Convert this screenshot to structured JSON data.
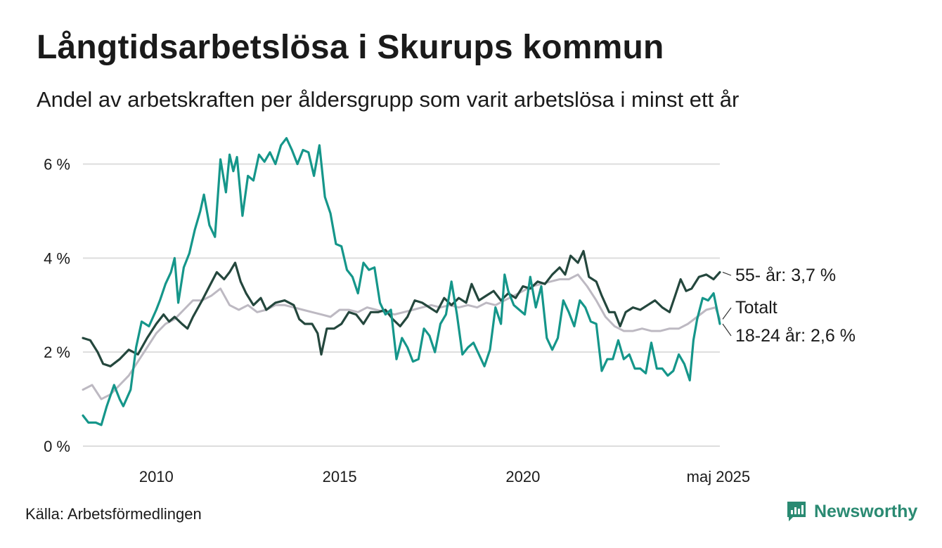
{
  "title": "Långtidsarbetslösa i Skurups kommun",
  "subtitle": "Andel av arbetskraften per åldersgrupp som varit arbetslösa i minst ett år",
  "source": "Källa: Arbetsförmedlingen",
  "brand": "Newsworthy",
  "colors": {
    "series_55": "#24473d",
    "series_total": "#bdb9c2",
    "series_18_24": "#15968a",
    "grid": "#dddddd",
    "brand": "#2a8a72"
  },
  "chart_data": {
    "type": "line",
    "ylim": [
      0,
      6.8
    ],
    "xlim": [
      2008.0,
      2025.37
    ],
    "yticks": [
      0,
      2,
      4,
      6
    ],
    "ytick_labels": [
      "0 %",
      "2 %",
      "4 %",
      "6 %"
    ],
    "xticks": [
      2010,
      2015,
      2020,
      2025.33
    ],
    "xtick_labels": [
      "2010",
      "2015",
      "2020",
      "maj 2025"
    ],
    "grid": true,
    "end_labels": {
      "series_55": "55- år: 3,7 %",
      "series_total": "Totalt",
      "series_18_24": "18-24 år: 2,6 %"
    },
    "series": [
      {
        "key": "series_total",
        "points": [
          [
            2008.0,
            1.2
          ],
          [
            2008.25,
            1.3
          ],
          [
            2008.5,
            1.0
          ],
          [
            2008.75,
            1.1
          ],
          [
            2009.0,
            1.3
          ],
          [
            2009.25,
            1.5
          ],
          [
            2009.5,
            1.8
          ],
          [
            2009.75,
            2.1
          ],
          [
            2010.0,
            2.4
          ],
          [
            2010.25,
            2.6
          ],
          [
            2010.5,
            2.7
          ],
          [
            2010.75,
            2.9
          ],
          [
            2011.0,
            3.1
          ],
          [
            2011.25,
            3.1
          ],
          [
            2011.5,
            3.2
          ],
          [
            2011.75,
            3.35
          ],
          [
            2012.0,
            3.0
          ],
          [
            2012.25,
            2.9
          ],
          [
            2012.5,
            3.0
          ],
          [
            2012.75,
            2.85
          ],
          [
            2013.0,
            2.9
          ],
          [
            2013.25,
            3.0
          ],
          [
            2013.5,
            3.0
          ],
          [
            2013.75,
            2.95
          ],
          [
            2014.0,
            2.9
          ],
          [
            2014.25,
            2.85
          ],
          [
            2014.5,
            2.8
          ],
          [
            2014.75,
            2.75
          ],
          [
            2015.0,
            2.9
          ],
          [
            2015.25,
            2.9
          ],
          [
            2015.5,
            2.85
          ],
          [
            2015.75,
            2.95
          ],
          [
            2016.0,
            2.9
          ],
          [
            2016.25,
            2.85
          ],
          [
            2016.5,
            2.8
          ],
          [
            2016.75,
            2.85
          ],
          [
            2017.0,
            2.9
          ],
          [
            2017.25,
            2.95
          ],
          [
            2017.5,
            3.0
          ],
          [
            2017.75,
            2.95
          ],
          [
            2018.0,
            3.0
          ],
          [
            2018.25,
            2.95
          ],
          [
            2018.5,
            3.0
          ],
          [
            2018.75,
            2.95
          ],
          [
            2019.0,
            3.05
          ],
          [
            2019.25,
            3.0
          ],
          [
            2019.5,
            3.1
          ],
          [
            2019.75,
            3.2
          ],
          [
            2020.0,
            3.3
          ],
          [
            2020.25,
            3.4
          ],
          [
            2020.5,
            3.45
          ],
          [
            2020.75,
            3.5
          ],
          [
            2021.0,
            3.55
          ],
          [
            2021.25,
            3.55
          ],
          [
            2021.5,
            3.65
          ],
          [
            2021.75,
            3.4
          ],
          [
            2022.0,
            3.1
          ],
          [
            2022.25,
            2.75
          ],
          [
            2022.5,
            2.55
          ],
          [
            2022.75,
            2.45
          ],
          [
            2023.0,
            2.45
          ],
          [
            2023.25,
            2.5
          ],
          [
            2023.5,
            2.45
          ],
          [
            2023.75,
            2.45
          ],
          [
            2024.0,
            2.5
          ],
          [
            2024.25,
            2.5
          ],
          [
            2024.5,
            2.6
          ],
          [
            2024.75,
            2.75
          ],
          [
            2025.0,
            2.9
          ],
          [
            2025.25,
            2.95
          ],
          [
            2025.37,
            2.7
          ]
        ]
      },
      {
        "key": "series_55",
        "points": [
          [
            2008.0,
            2.3
          ],
          [
            2008.2,
            2.25
          ],
          [
            2008.4,
            2.0
          ],
          [
            2008.55,
            1.75
          ],
          [
            2008.75,
            1.7
          ],
          [
            2009.0,
            1.85
          ],
          [
            2009.25,
            2.05
          ],
          [
            2009.5,
            1.95
          ],
          [
            2009.75,
            2.3
          ],
          [
            2010.0,
            2.6
          ],
          [
            2010.2,
            2.8
          ],
          [
            2010.35,
            2.65
          ],
          [
            2010.5,
            2.75
          ],
          [
            2010.7,
            2.6
          ],
          [
            2010.85,
            2.5
          ],
          [
            2011.0,
            2.75
          ],
          [
            2011.25,
            3.1
          ],
          [
            2011.45,
            3.4
          ],
          [
            2011.65,
            3.7
          ],
          [
            2011.85,
            3.55
          ],
          [
            2012.0,
            3.7
          ],
          [
            2012.15,
            3.9
          ],
          [
            2012.3,
            3.5
          ],
          [
            2012.45,
            3.25
          ],
          [
            2012.65,
            3.0
          ],
          [
            2012.85,
            3.15
          ],
          [
            2013.0,
            2.9
          ],
          [
            2013.25,
            3.05
          ],
          [
            2013.5,
            3.1
          ],
          [
            2013.75,
            3.0
          ],
          [
            2013.9,
            2.7
          ],
          [
            2014.05,
            2.6
          ],
          [
            2014.25,
            2.6
          ],
          [
            2014.4,
            2.4
          ],
          [
            2014.5,
            1.95
          ],
          [
            2014.65,
            2.5
          ],
          [
            2014.85,
            2.5
          ],
          [
            2015.05,
            2.6
          ],
          [
            2015.25,
            2.85
          ],
          [
            2015.45,
            2.8
          ],
          [
            2015.65,
            2.6
          ],
          [
            2015.85,
            2.85
          ],
          [
            2016.05,
            2.85
          ],
          [
            2016.25,
            2.9
          ],
          [
            2016.45,
            2.7
          ],
          [
            2016.65,
            2.55
          ],
          [
            2016.85,
            2.75
          ],
          [
            2017.05,
            3.1
          ],
          [
            2017.25,
            3.05
          ],
          [
            2017.45,
            2.95
          ],
          [
            2017.65,
            2.85
          ],
          [
            2017.85,
            3.15
          ],
          [
            2018.05,
            3.0
          ],
          [
            2018.25,
            3.15
          ],
          [
            2018.45,
            3.05
          ],
          [
            2018.6,
            3.45
          ],
          [
            2018.8,
            3.1
          ],
          [
            2019.0,
            3.2
          ],
          [
            2019.2,
            3.3
          ],
          [
            2019.4,
            3.1
          ],
          [
            2019.6,
            3.25
          ],
          [
            2019.8,
            3.15
          ],
          [
            2020.0,
            3.4
          ],
          [
            2020.2,
            3.35
          ],
          [
            2020.4,
            3.5
          ],
          [
            2020.6,
            3.45
          ],
          [
            2020.8,
            3.65
          ],
          [
            2021.0,
            3.8
          ],
          [
            2021.15,
            3.65
          ],
          [
            2021.3,
            4.05
          ],
          [
            2021.5,
            3.9
          ],
          [
            2021.65,
            4.15
          ],
          [
            2021.8,
            3.6
          ],
          [
            2022.0,
            3.5
          ],
          [
            2022.15,
            3.2
          ],
          [
            2022.35,
            2.85
          ],
          [
            2022.5,
            2.85
          ],
          [
            2022.65,
            2.55
          ],
          [
            2022.8,
            2.85
          ],
          [
            2023.0,
            2.95
          ],
          [
            2023.2,
            2.9
          ],
          [
            2023.4,
            3.0
          ],
          [
            2023.6,
            3.1
          ],
          [
            2023.8,
            2.95
          ],
          [
            2024.0,
            2.85
          ],
          [
            2024.15,
            3.2
          ],
          [
            2024.3,
            3.55
          ],
          [
            2024.45,
            3.3
          ],
          [
            2024.6,
            3.35
          ],
          [
            2024.8,
            3.6
          ],
          [
            2025.0,
            3.65
          ],
          [
            2025.2,
            3.55
          ],
          [
            2025.37,
            3.7
          ]
        ]
      },
      {
        "key": "series_18_24",
        "points": [
          [
            2008.0,
            0.65
          ],
          [
            2008.15,
            0.5
          ],
          [
            2008.35,
            0.5
          ],
          [
            2008.5,
            0.45
          ],
          [
            2008.65,
            0.85
          ],
          [
            2008.85,
            1.3
          ],
          [
            2009.0,
            1.0
          ],
          [
            2009.1,
            0.85
          ],
          [
            2009.3,
            1.2
          ],
          [
            2009.45,
            2.1
          ],
          [
            2009.6,
            2.65
          ],
          [
            2009.8,
            2.55
          ],
          [
            2010.0,
            2.9
          ],
          [
            2010.1,
            3.1
          ],
          [
            2010.25,
            3.45
          ],
          [
            2010.4,
            3.7
          ],
          [
            2010.5,
            4.0
          ],
          [
            2010.6,
            3.05
          ],
          [
            2010.75,
            3.8
          ],
          [
            2010.9,
            4.1
          ],
          [
            2011.05,
            4.6
          ],
          [
            2011.2,
            5.0
          ],
          [
            2011.3,
            5.35
          ],
          [
            2011.45,
            4.7
          ],
          [
            2011.6,
            4.45
          ],
          [
            2011.75,
            6.1
          ],
          [
            2011.9,
            5.4
          ],
          [
            2012.0,
            6.2
          ],
          [
            2012.1,
            5.85
          ],
          [
            2012.2,
            6.15
          ],
          [
            2012.35,
            4.9
          ],
          [
            2012.5,
            5.75
          ],
          [
            2012.65,
            5.65
          ],
          [
            2012.8,
            6.2
          ],
          [
            2012.95,
            6.05
          ],
          [
            2013.1,
            6.25
          ],
          [
            2013.25,
            6.0
          ],
          [
            2013.4,
            6.4
          ],
          [
            2013.55,
            6.55
          ],
          [
            2013.7,
            6.3
          ],
          [
            2013.85,
            6.0
          ],
          [
            2014.0,
            6.3
          ],
          [
            2014.15,
            6.25
          ],
          [
            2014.3,
            5.75
          ],
          [
            2014.45,
            6.4
          ],
          [
            2014.6,
            5.3
          ],
          [
            2014.75,
            4.95
          ],
          [
            2014.9,
            4.3
          ],
          [
            2015.05,
            4.25
          ],
          [
            2015.2,
            3.75
          ],
          [
            2015.35,
            3.6
          ],
          [
            2015.5,
            3.25
          ],
          [
            2015.65,
            3.9
          ],
          [
            2015.8,
            3.75
          ],
          [
            2015.95,
            3.8
          ],
          [
            2016.1,
            3.05
          ],
          [
            2016.25,
            2.8
          ],
          [
            2016.4,
            2.9
          ],
          [
            2016.55,
            1.85
          ],
          [
            2016.7,
            2.3
          ],
          [
            2016.85,
            2.1
          ],
          [
            2017.0,
            1.8
          ],
          [
            2017.15,
            1.85
          ],
          [
            2017.3,
            2.5
          ],
          [
            2017.45,
            2.35
          ],
          [
            2017.6,
            2.0
          ],
          [
            2017.75,
            2.6
          ],
          [
            2017.9,
            2.8
          ],
          [
            2018.05,
            3.5
          ],
          [
            2018.2,
            2.8
          ],
          [
            2018.35,
            1.95
          ],
          [
            2018.5,
            2.1
          ],
          [
            2018.65,
            2.2
          ],
          [
            2018.8,
            1.95
          ],
          [
            2018.95,
            1.7
          ],
          [
            2019.1,
            2.05
          ],
          [
            2019.25,
            2.95
          ],
          [
            2019.4,
            2.6
          ],
          [
            2019.5,
            3.65
          ],
          [
            2019.6,
            3.3
          ],
          [
            2019.75,
            3.0
          ],
          [
            2019.9,
            2.9
          ],
          [
            2020.05,
            2.8
          ],
          [
            2020.2,
            3.6
          ],
          [
            2020.35,
            2.95
          ],
          [
            2020.5,
            3.4
          ],
          [
            2020.65,
            2.3
          ],
          [
            2020.8,
            2.05
          ],
          [
            2020.95,
            2.3
          ],
          [
            2021.1,
            3.1
          ],
          [
            2021.25,
            2.85
          ],
          [
            2021.4,
            2.55
          ],
          [
            2021.55,
            3.1
          ],
          [
            2021.7,
            2.95
          ],
          [
            2021.85,
            2.65
          ],
          [
            2022.0,
            2.6
          ],
          [
            2022.15,
            1.6
          ],
          [
            2022.3,
            1.85
          ],
          [
            2022.45,
            1.85
          ],
          [
            2022.6,
            2.25
          ],
          [
            2022.75,
            1.85
          ],
          [
            2022.9,
            1.95
          ],
          [
            2023.05,
            1.65
          ],
          [
            2023.2,
            1.65
          ],
          [
            2023.35,
            1.55
          ],
          [
            2023.5,
            2.2
          ],
          [
            2023.65,
            1.65
          ],
          [
            2023.8,
            1.65
          ],
          [
            2023.95,
            1.5
          ],
          [
            2024.1,
            1.6
          ],
          [
            2024.25,
            1.95
          ],
          [
            2024.4,
            1.75
          ],
          [
            2024.55,
            1.4
          ],
          [
            2024.65,
            2.25
          ],
          [
            2024.75,
            2.7
          ],
          [
            2024.9,
            3.15
          ],
          [
            2025.05,
            3.1
          ],
          [
            2025.2,
            3.25
          ],
          [
            2025.37,
            2.6
          ]
        ]
      }
    ]
  }
}
